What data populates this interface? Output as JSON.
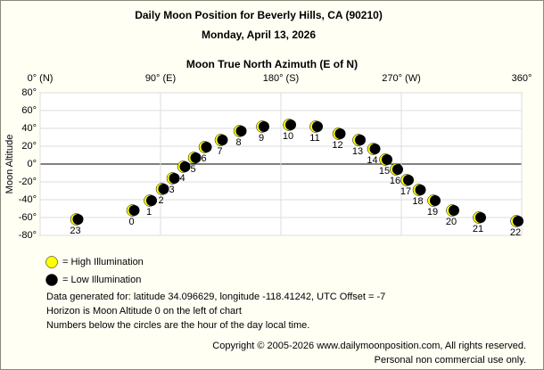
{
  "chart_data": {
    "type": "scatter",
    "title": "Daily Moon Position for Beverly Hills, CA (90210)",
    "subtitle": "Monday, April 13, 2026",
    "x_label": "Moon True North Azimuth (E of N)",
    "y_label": "Moon Altitude",
    "xlim": [
      0,
      360
    ],
    "ylim": [
      -80,
      80
    ],
    "xticks": [
      {
        "value": 0,
        "label": "0° (N)"
      },
      {
        "value": 90,
        "label": "90° (E)"
      },
      {
        "value": 180,
        "label": "180° (S)"
      },
      {
        "value": 270,
        "label": "270° (W)"
      },
      {
        "value": 360,
        "label": "360°"
      }
    ],
    "yticks": [
      {
        "value": 80,
        "label": "80°"
      },
      {
        "value": 60,
        "label": "60°"
      },
      {
        "value": 40,
        "label": "40°"
      },
      {
        "value": 20,
        "label": "20°"
      },
      {
        "value": 0,
        "label": "0°"
      },
      {
        "value": -20,
        "label": "-20°"
      },
      {
        "value": -40,
        "label": "-40°"
      },
      {
        "value": -60,
        "label": "-60°"
      },
      {
        "value": -80,
        "label": "-80°"
      }
    ],
    "grid": true,
    "hours": [
      0,
      1,
      2,
      3,
      4,
      5,
      6,
      7,
      8,
      9,
      10,
      11,
      12,
      13,
      14,
      15,
      16,
      17,
      18,
      19,
      20,
      21,
      22,
      23
    ],
    "x": [
      69,
      82,
      91,
      99,
      107,
      115,
      123,
      135,
      149,
      166,
      186,
      206,
      223,
      238,
      249,
      258,
      266,
      274,
      283,
      294,
      308,
      328,
      356,
      27
    ],
    "values": [
      -52,
      -41,
      -28,
      -16,
      -3,
      7,
      19,
      27,
      37,
      42,
      44,
      42,
      34,
      27,
      17,
      5,
      -6,
      -18,
      -29,
      -41,
      -52,
      -60,
      -64,
      -62
    ],
    "legend": [
      {
        "name": "= High Illumination",
        "color": "#ffff00"
      },
      {
        "name": "= Low Illumination",
        "color": "#000000"
      }
    ],
    "notes": [
      "Data generated for: latitude 34.096629, longitude -118.41242, UTC Offset = -7",
      "Horizon is Moon Altitude 0 on the left of chart",
      "Numbers below the circles are the hour of the day local time."
    ],
    "copyright": [
      "Copyright © 2005-2026 www.dailymoonposition.com, All rights reserved.",
      "Personal non commercial use only."
    ]
  }
}
